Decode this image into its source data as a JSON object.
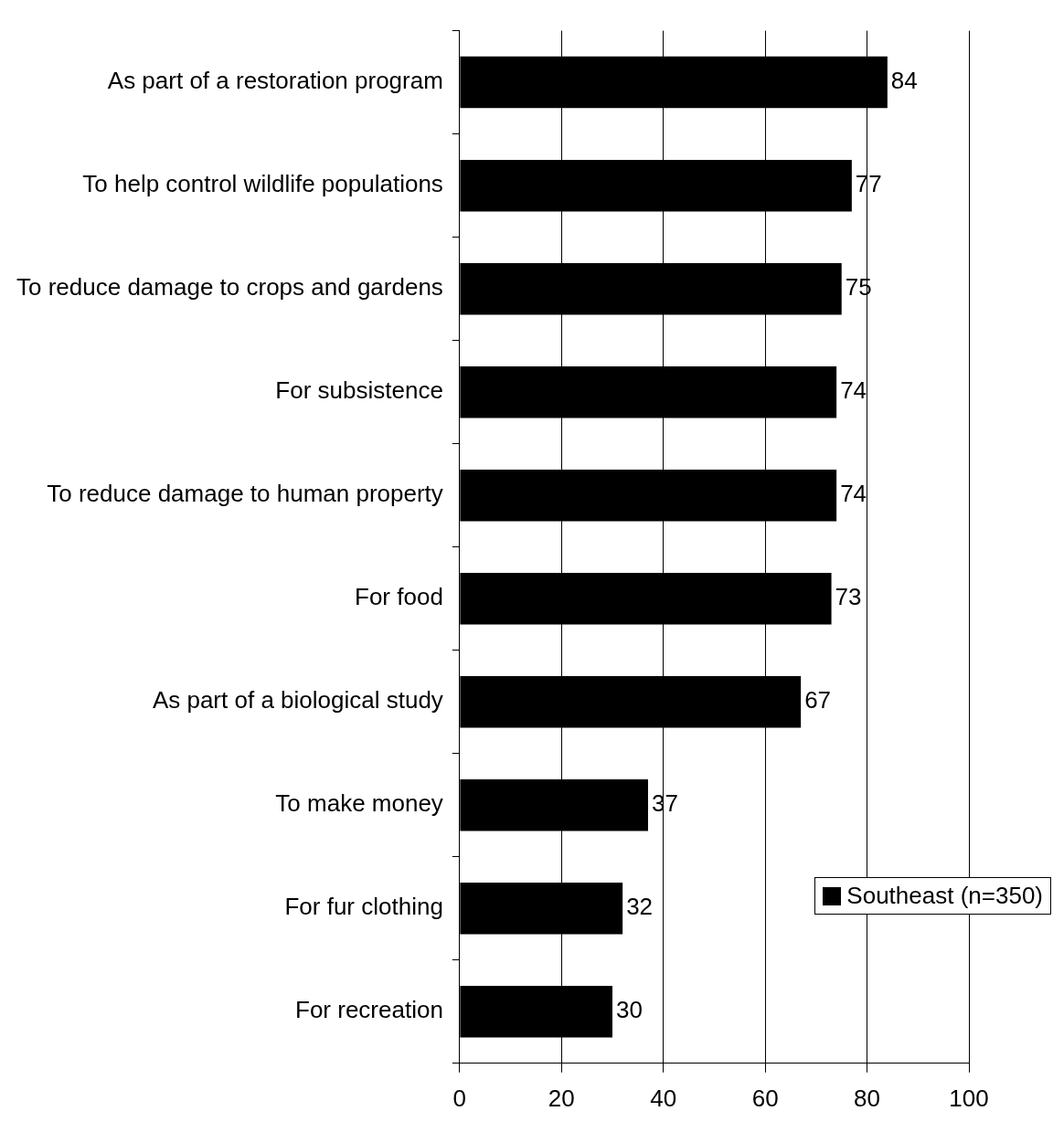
{
  "chart_data": {
    "type": "bar",
    "orientation": "horizontal",
    "categories": [
      "As part of a restoration program",
      "To help control wildlife populations",
      "To reduce damage to crops and gardens",
      "For subsistence",
      "To reduce damage to human property",
      "For food",
      "As part of a biological study",
      "To make money",
      "For fur clothing",
      "For recreation"
    ],
    "series": [
      {
        "name": "Southeast (n=350)",
        "color": "#000000",
        "values": [
          84,
          77,
          75,
          74,
          74,
          73,
          67,
          37,
          32,
          30
        ]
      }
    ],
    "xlim": [
      0,
      100
    ],
    "xticks": [
      0,
      20,
      40,
      60,
      80,
      100
    ],
    "grid": "x",
    "legend": "right",
    "data_labels": true
  }
}
